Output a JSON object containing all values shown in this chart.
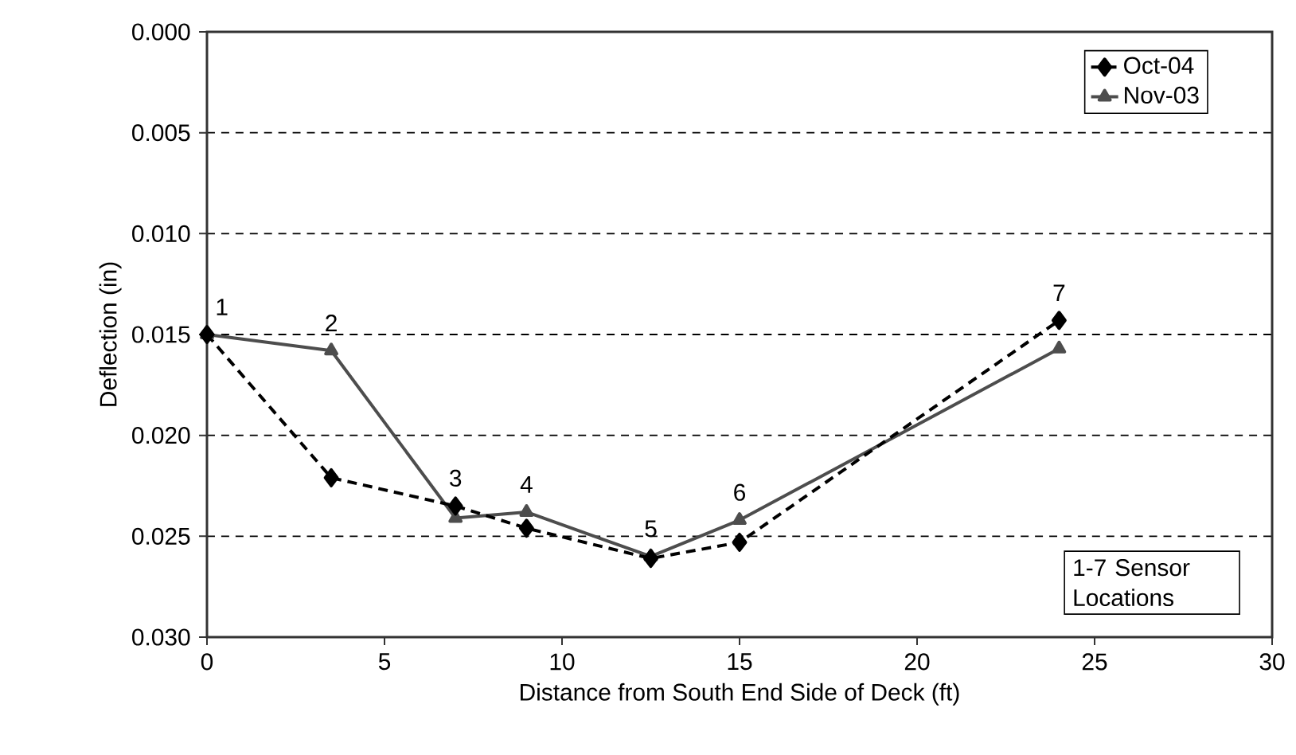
{
  "chart_data": {
    "type": "line",
    "xlabel": "Distance from South End Side of Deck (ft)",
    "ylabel": "Deflection (in)",
    "x": [
      0,
      3.5,
      7,
      9,
      12.5,
      15,
      24
    ],
    "series": [
      {
        "name": "Oct-04",
        "color": "#000000",
        "marker": "diamond",
        "line_style": "dashed",
        "values": [
          0.015,
          0.0221,
          0.0235,
          0.0246,
          0.0261,
          0.0253,
          0.0143
        ]
      },
      {
        "name": "Nov-03",
        "color": "#4d4d4d",
        "marker": "triangle",
        "line_style": "solid",
        "values": [
          0.015,
          0.0158,
          0.0241,
          0.0238,
          0.026,
          0.0242,
          0.0157
        ]
      }
    ],
    "xlim": [
      0,
      30
    ],
    "xticks": [
      0,
      5,
      10,
      15,
      20,
      25,
      30
    ],
    "ylim": [
      0.03,
      0.0
    ],
    "yticks": [
      {
        "value": 0.0,
        "label": "0.000"
      },
      {
        "value": 0.005,
        "label": "0.005"
      },
      {
        "value": 0.01,
        "label": "0.010"
      },
      {
        "value": 0.015,
        "label": "0.015"
      },
      {
        "value": 0.02,
        "label": "0.020"
      },
      {
        "value": 0.025,
        "label": "0.025"
      },
      {
        "value": 0.03,
        "label": "0.030"
      }
    ],
    "grid": "y",
    "legend": "top right",
    "annotations": [
      {
        "text": "1",
        "x": 0,
        "y": 0.015
      },
      {
        "text": "2",
        "x": 3.5,
        "y": 0.0158
      },
      {
        "text": "3",
        "x": 7,
        "y": 0.0235
      },
      {
        "text": "4",
        "x": 9,
        "y": 0.0238
      },
      {
        "text": "5",
        "x": 12.5,
        "y": 0.026
      },
      {
        "text": "6",
        "x": 15,
        "y": 0.0242
      },
      {
        "text": "7",
        "x": 24,
        "y": 0.0143
      },
      "1-7  Sensor Locations"
    ]
  }
}
